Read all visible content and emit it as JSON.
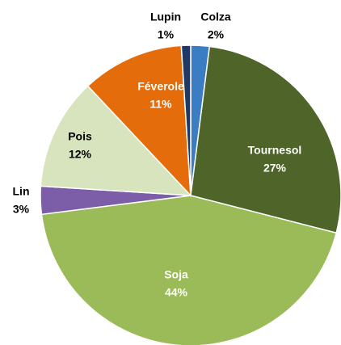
{
  "chart_data": {
    "type": "pie",
    "categories": [
      "Colza",
      "Tournesol",
      "Soja",
      "Lin",
      "Pois",
      "Féverole",
      "Lupin"
    ],
    "values": [
      2,
      27,
      44,
      3,
      12,
      11,
      1
    ],
    "value_labels": [
      "2%",
      "27%",
      "44%",
      "3%",
      "12%",
      "11%",
      "1%"
    ],
    "colors": [
      "#3b7dc3",
      "#4f6428",
      "#9bbb59",
      "#7b5ea7",
      "#d7e4bd",
      "#e46c0a",
      "#1f3864"
    ]
  }
}
